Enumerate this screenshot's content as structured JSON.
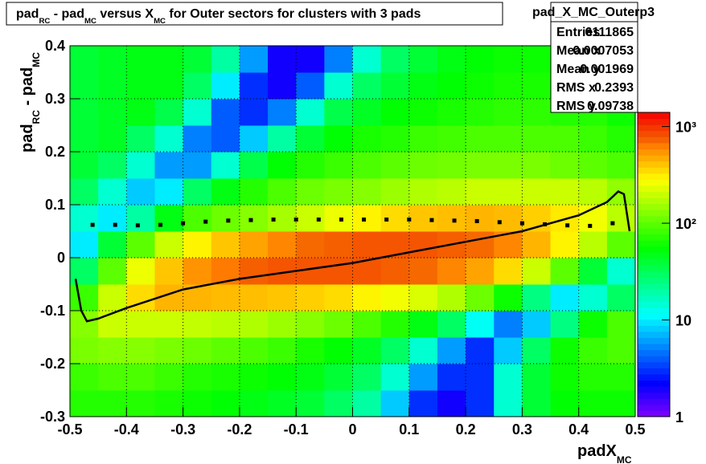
{
  "chart_data": {
    "type": "heatmap",
    "title_parts": [
      "pad",
      "RC",
      " - pad",
      "MC",
      " versus X",
      "MC",
      " for Outer sectors for clusters with 3 pads"
    ],
    "xlabel_parts": [
      "padX",
      "MC"
    ],
    "ylabel_parts": [
      "pad",
      "RC",
      " - pad",
      "MC"
    ],
    "xlim": [
      -0.5,
      0.5
    ],
    "ylim": [
      -0.3,
      0.4
    ],
    "xticks": [
      -0.5,
      -0.4,
      -0.3,
      -0.2,
      -0.1,
      0,
      0.1,
      0.2,
      0.3,
      0.4,
      0.5
    ],
    "yticks": [
      -0.3,
      -0.2,
      -0.1,
      0,
      0.1,
      0.2,
      0.3,
      0.4
    ],
    "grid": true,
    "zlog": true,
    "zlim": [
      1,
      1400
    ],
    "zticks": [
      1,
      10,
      {
        "value": 100,
        "label": "10²"
      },
      {
        "value": 1000,
        "label": "10³"
      }
    ],
    "x": [
      -0.475,
      -0.425,
      -0.375,
      -0.325,
      -0.275,
      -0.225,
      -0.175,
      -0.125,
      -0.075,
      -0.025,
      0.025,
      0.075,
      0.125,
      0.175,
      0.225,
      0.275,
      0.325,
      0.375,
      0.425,
      0.475
    ],
    "y": [
      -0.275,
      -0.225,
      -0.175,
      -0.125,
      -0.075,
      -0.025,
      0.025,
      0.075,
      0.125,
      0.175,
      0.225,
      0.275,
      0.325,
      0.375
    ],
    "z": [
      [
        70,
        70,
        70,
        65,
        60,
        55,
        50,
        45,
        40,
        30,
        20,
        8,
        3,
        2,
        3,
        15,
        40,
        55,
        60,
        60
      ],
      [
        80,
        90,
        90,
        80,
        70,
        65,
        60,
        55,
        50,
        40,
        30,
        15,
        6,
        3,
        3,
        15,
        40,
        60,
        70,
        70
      ],
      [
        120,
        130,
        130,
        120,
        110,
        100,
        90,
        80,
        65,
        55,
        45,
        30,
        15,
        6,
        3,
        8,
        30,
        60,
        80,
        90
      ],
      [
        130,
        200,
        200,
        200,
        190,
        180,
        170,
        150,
        130,
        110,
        90,
        70,
        50,
        30,
        12,
        5,
        8,
        25,
        60,
        90
      ],
      [
        80,
        200,
        350,
        450,
        450,
        430,
        420,
        400,
        380,
        350,
        300,
        260,
        220,
        170,
        110,
        60,
        25,
        10,
        15,
        30
      ],
      [
        30,
        100,
        250,
        400,
        550,
        650,
        750,
        800,
        800,
        800,
        800,
        750,
        700,
        600,
        500,
        350,
        200,
        100,
        40,
        15
      ],
      [
        10,
        40,
        100,
        200,
        300,
        400,
        500,
        600,
        700,
        750,
        800,
        800,
        800,
        750,
        700,
        600,
        450,
        300,
        180,
        100
      ],
      [
        15,
        10,
        20,
        50,
        90,
        110,
        130,
        160,
        200,
        250,
        300,
        350,
        400,
        420,
        450,
        430,
        380,
        320,
        260,
        180
      ],
      [
        30,
        15,
        8,
        10,
        30,
        50,
        70,
        90,
        110,
        120,
        130,
        150,
        170,
        180,
        200,
        200,
        200,
        200,
        180,
        140
      ],
      [
        40,
        30,
        15,
        6,
        6,
        15,
        35,
        55,
        70,
        80,
        90,
        100,
        110,
        115,
        120,
        120,
        120,
        110,
        100,
        90
      ],
      [
        40,
        45,
        30,
        15,
        5,
        4,
        8,
        20,
        40,
        55,
        65,
        70,
        80,
        85,
        90,
        90,
        90,
        90,
        80,
        70
      ],
      [
        40,
        45,
        50,
        35,
        15,
        4,
        3,
        5,
        15,
        35,
        45,
        55,
        60,
        65,
        70,
        75,
        75,
        70,
        70,
        60
      ],
      [
        40,
        45,
        50,
        50,
        30,
        10,
        3,
        2,
        4,
        15,
        30,
        40,
        50,
        55,
        60,
        65,
        65,
        65,
        60,
        55
      ],
      [
        40,
        45,
        50,
        50,
        40,
        20,
        6,
        2,
        2,
        5,
        15,
        30,
        40,
        50,
        55,
        60,
        60,
        60,
        55,
        50
      ]
    ],
    "series": [
      {
        "style": "markers",
        "color": "#000000",
        "x": [
          -0.46,
          -0.42,
          -0.38,
          -0.34,
          -0.3,
          -0.26,
          -0.22,
          -0.18,
          -0.14,
          -0.1,
          -0.06,
          -0.02,
          0.02,
          0.06,
          0.1,
          0.14,
          0.18,
          0.22,
          0.26,
          0.3,
          0.34,
          0.38,
          0.42,
          0.46
        ],
        "values": [
          0.062,
          0.062,
          0.061,
          0.062,
          0.065,
          0.068,
          0.07,
          0.071,
          0.072,
          0.072,
          0.072,
          0.072,
          0.072,
          0.072,
          0.072,
          0.071,
          0.07,
          0.069,
          0.067,
          0.065,
          0.063,
          0.061,
          0.06,
          0.065
        ]
      },
      {
        "style": "line",
        "color": "#000000",
        "x": [
          -0.49,
          -0.48,
          -0.47,
          -0.45,
          -0.4,
          -0.3,
          -0.2,
          -0.1,
          0,
          0.1,
          0.2,
          0.3,
          0.4,
          0.45,
          0.47,
          0.48,
          0.49
        ],
        "values": [
          -0.04,
          -0.1,
          -0.12,
          -0.115,
          -0.095,
          -0.06,
          -0.04,
          -0.025,
          -0.01,
          0.01,
          0.03,
          0.05,
          0.08,
          0.105,
          0.125,
          0.12,
          0.05
        ]
      }
    ],
    "stats": {
      "name": "pad_X_MC_Outerp3",
      "rows": [
        [
          "Entries",
          "6111865"
        ],
        [
          "Mean x",
          "0.0007053"
        ],
        [
          "Mean y",
          "0.001969"
        ],
        [
          "RMS x",
          "0.2393"
        ],
        [
          "RMS y",
          "0.09738"
        ]
      ]
    }
  }
}
